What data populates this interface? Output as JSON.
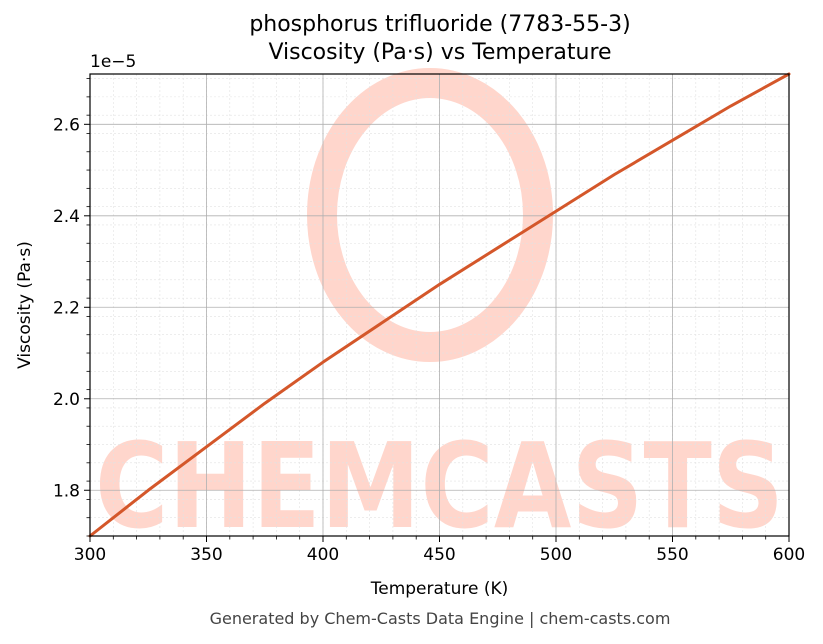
{
  "chart_data": {
    "type": "line",
    "title": "phosphorus trifluoride (7783-55-3)",
    "subtitle": "Viscosity (Pa·s) vs Temperature",
    "xlabel": "Temperature (K)",
    "ylabel": "Viscosity (Pa·s)",
    "offset_label": "1e−5",
    "xlim": [
      300,
      600
    ],
    "ylim": [
      1.7,
      2.71
    ],
    "x_ticks": [
      "300",
      "350",
      "400",
      "450",
      "500",
      "550",
      "600"
    ],
    "y_ticks": [
      "1.8",
      "2.0",
      "2.2",
      "2.4",
      "2.6"
    ],
    "grid": true,
    "series": [
      {
        "color": "#d4572a",
        "x": [
          300,
          325,
          350,
          375,
          400,
          425,
          450,
          475,
          500,
          525,
          550,
          575,
          600
        ],
        "y": [
          1.7,
          1.8,
          1.895,
          1.99,
          2.08,
          2.165,
          2.25,
          2.33,
          2.41,
          2.49,
          2.565,
          2.64,
          2.71
        ]
      }
    ],
    "watermark": "CHEMCASTS",
    "watermark_color": "#ffd6cc"
  },
  "footer": "Generated by Chem-Casts Data Engine | chem-casts.com"
}
